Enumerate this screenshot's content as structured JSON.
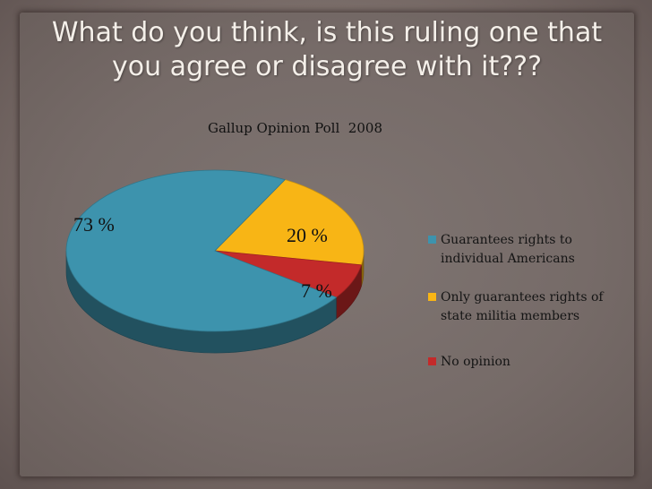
{
  "slide": {
    "title": "What do you think, is this ruling one that you  agree or disagree with it???"
  },
  "colors": {
    "series_blue": "#3d93ad",
    "series_yellow": "#f8b515",
    "series_red": "#c32a2a"
  },
  "chart_data": {
    "type": "pie",
    "title": "Gallup Opinion Poll  2008",
    "style": "3d",
    "legend_position": "right",
    "slices": [
      {
        "label": "Guarantees rights to individual Americans",
        "value": 73,
        "data_label": "73 %",
        "color": "#3d93ad"
      },
      {
        "label": "Only guarantees rights of state militia members",
        "value": 20,
        "data_label": "20 %",
        "color": "#f8b515"
      },
      {
        "label": "No opinion",
        "value": 7,
        "data_label": "7 %",
        "color": "#c32a2a"
      }
    ]
  }
}
